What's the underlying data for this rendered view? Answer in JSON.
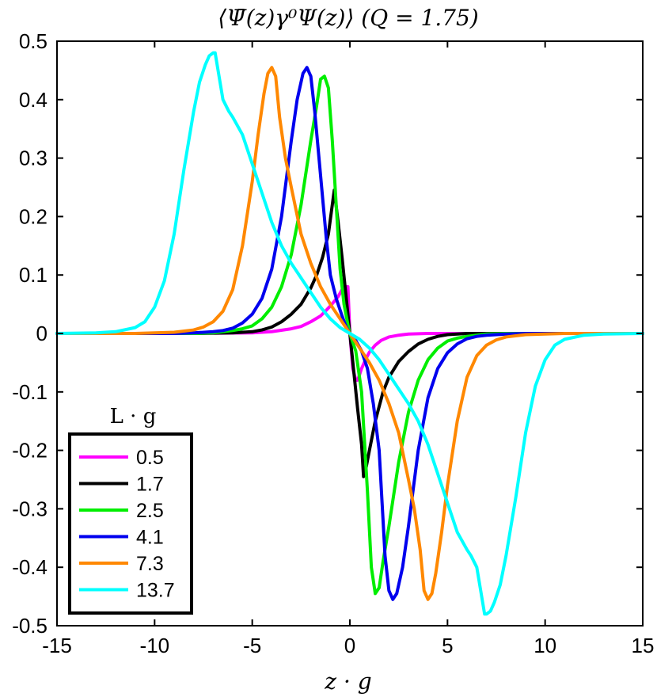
{
  "chart_data": {
    "type": "line",
    "title": "⟨Ψ̄(z)γ⁰Ψ(z)⟩ (Q = 1.75)",
    "xlabel": "z · g",
    "ylabel": "",
    "xlim": [
      -15,
      15
    ],
    "ylim": [
      -0.5,
      0.5
    ],
    "x_ticks": [
      -15,
      -10,
      -5,
      0,
      5,
      10,
      15
    ],
    "x_tick_labels": [
      "-15",
      "-10",
      "-5",
      "0",
      "5",
      "10",
      "15"
    ],
    "y_ticks": [
      -0.5,
      -0.4,
      -0.3,
      -0.2,
      -0.1,
      0,
      0.1,
      0.2,
      0.3,
      0.4,
      0.5
    ],
    "y_tick_labels": [
      "-0.5",
      "-0.4",
      "-0.3",
      "-0.2",
      "-0.1",
      "0",
      "0.1",
      "0.2",
      "0.3",
      "0.4",
      "0.5"
    ],
    "grid": false,
    "legend_title": "L · g",
    "legend_position": "bottom-left",
    "series": [
      {
        "name": "0.5",
        "color": "#ff00ff",
        "x": [
          -15,
          -8,
          -5,
          -4,
          -3,
          -2.5,
          -2,
          -1.5,
          -1.2,
          -1,
          -0.8,
          -0.6,
          -0.4,
          -0.3,
          -0.1,
          0,
          0.15,
          0.3,
          0.4,
          0.6,
          0.8,
          1.0,
          1.3,
          1.6,
          2,
          2.5,
          3,
          4,
          5,
          8,
          15
        ],
        "y": [
          0,
          0,
          0.001,
          0.003,
          0.008,
          0.012,
          0.02,
          0.03,
          0.04,
          0.047,
          0.055,
          0.063,
          0.075,
          0.08,
          0.08,
          0.0,
          -0.06,
          -0.08,
          -0.08,
          -0.06,
          -0.045,
          -0.032,
          -0.02,
          -0.012,
          -0.006,
          -0.003,
          -0.001,
          0,
          0,
          0,
          0
        ]
      },
      {
        "name": "1.7",
        "color": "#000000",
        "x": [
          -15,
          -8,
          -6,
          -5,
          -4.5,
          -4,
          -3.5,
          -3,
          -2.5,
          -2,
          -1.7,
          -1.4,
          -1.1,
          -0.9,
          -0.8,
          -0.6,
          -0.4,
          -0.2,
          0,
          0.2,
          0.4,
          0.6,
          0.7,
          0.8,
          1.0,
          1.3,
          1.7,
          2,
          2.5,
          3,
          3.5,
          4,
          4.5,
          5,
          6,
          8,
          15
        ],
        "y": [
          0,
          0,
          0.001,
          0.003,
          0.006,
          0.011,
          0.02,
          0.033,
          0.05,
          0.078,
          0.1,
          0.13,
          0.17,
          0.22,
          0.245,
          0.19,
          0.13,
          0.065,
          0,
          -0.065,
          -0.13,
          -0.19,
          -0.245,
          -0.235,
          -0.2,
          -0.15,
          -0.1,
          -0.075,
          -0.048,
          -0.031,
          -0.018,
          -0.01,
          -0.005,
          -0.002,
          0,
          0,
          0
        ]
      },
      {
        "name": "2.5",
        "color": "#00ee00",
        "x": [
          -15,
          -8,
          -7,
          -6,
          -5.5,
          -5,
          -4.5,
          -4,
          -3.5,
          -3,
          -2.5,
          -2,
          -1.7,
          -1.5,
          -1.3,
          -1.1,
          -0.9,
          -0.7,
          -0.5,
          -0.3,
          -0.1,
          0,
          0.3,
          0.6,
          0.9,
          1.1,
          1.3,
          1.5,
          1.7,
          2,
          2.5,
          3,
          3.5,
          4,
          4.5,
          5,
          5.5,
          6,
          7,
          8,
          15
        ],
        "y": [
          0,
          0,
          0.001,
          0.005,
          0.008,
          0.013,
          0.025,
          0.045,
          0.08,
          0.135,
          0.22,
          0.33,
          0.39,
          0.435,
          0.44,
          0.42,
          0.33,
          0.22,
          0.11,
          0.05,
          0.015,
          0,
          -0.03,
          -0.1,
          -0.27,
          -0.4,
          -0.445,
          -0.435,
          -0.39,
          -0.33,
          -0.22,
          -0.135,
          -0.08,
          -0.045,
          -0.025,
          -0.013,
          -0.008,
          -0.005,
          -0.001,
          0,
          0
        ]
      },
      {
        "name": "4.1",
        "color": "#0000ee",
        "x": [
          -15,
          -9,
          -8,
          -7,
          -6.5,
          -6,
          -5.5,
          -5,
          -4.5,
          -4,
          -3.5,
          -3,
          -2.7,
          -2.4,
          -2.2,
          -2,
          -1.8,
          -1.5,
          -1.2,
          -1,
          -0.7,
          -0.4,
          -0.2,
          0,
          0.3,
          0.6,
          0.9,
          1.2,
          1.5,
          1.8,
          2.0,
          2.2,
          2.4,
          2.7,
          3,
          3.5,
          4,
          4.5,
          5,
          5.5,
          6,
          6.5,
          7,
          8,
          9,
          15
        ],
        "y": [
          0,
          0,
          0.001,
          0.003,
          0.005,
          0.009,
          0.018,
          0.033,
          0.06,
          0.11,
          0.2,
          0.33,
          0.4,
          0.445,
          0.455,
          0.44,
          0.38,
          0.27,
          0.16,
          0.1,
          0.06,
          0.03,
          0.012,
          0,
          -0.012,
          -0.03,
          -0.06,
          -0.12,
          -0.2,
          -0.38,
          -0.44,
          -0.455,
          -0.445,
          -0.4,
          -0.33,
          -0.2,
          -0.11,
          -0.06,
          -0.033,
          -0.018,
          -0.009,
          -0.005,
          -0.003,
          -0.001,
          0,
          0
        ]
      },
      {
        "name": "7.3",
        "color": "#ff8800",
        "x": [
          -15,
          -11,
          -10,
          -9,
          -8,
          -7.5,
          -7,
          -6.5,
          -6,
          -5.5,
          -5,
          -4.7,
          -4.4,
          -4.2,
          -4.0,
          -3.8,
          -3.6,
          -3.3,
          -3.0,
          -2.5,
          -2,
          -1.5,
          -1,
          -0.5,
          0,
          0.5,
          1,
          1.5,
          2,
          2.5,
          3.0,
          3.3,
          3.6,
          3.8,
          4.0,
          4.2,
          4.4,
          4.7,
          5,
          5.5,
          6,
          6.5,
          7,
          7.5,
          8,
          9,
          10,
          11,
          15
        ],
        "y": [
          0,
          0,
          0.001,
          0.002,
          0.006,
          0.011,
          0.02,
          0.038,
          0.075,
          0.15,
          0.26,
          0.34,
          0.41,
          0.445,
          0.455,
          0.44,
          0.37,
          0.3,
          0.25,
          0.17,
          0.12,
          0.08,
          0.05,
          0.025,
          0,
          -0.025,
          -0.05,
          -0.08,
          -0.12,
          -0.17,
          -0.25,
          -0.3,
          -0.37,
          -0.44,
          -0.455,
          -0.445,
          -0.41,
          -0.34,
          -0.26,
          -0.15,
          -0.075,
          -0.038,
          -0.02,
          -0.011,
          -0.006,
          -0.002,
          -0.001,
          0,
          0
        ]
      },
      {
        "name": "13.7",
        "color": "#00ffff",
        "x": [
          -15,
          -13,
          -12,
          -11,
          -10.5,
          -10,
          -9.5,
          -9,
          -8.5,
          -8,
          -7.7,
          -7.4,
          -7.2,
          -7.0,
          -6.9,
          -6.7,
          -6.5,
          -6.2,
          -6,
          -5.5,
          -5,
          -4.5,
          -4,
          -3.5,
          -3,
          -2.5,
          -2,
          -1.5,
          -1,
          -0.5,
          0,
          0.5,
          1,
          1.5,
          2,
          2.5,
          3,
          3.5,
          4,
          4.5,
          5,
          5.5,
          6,
          6.2,
          6.5,
          6.7,
          6.9,
          7.0,
          7.2,
          7.4,
          7.7,
          8,
          8.5,
          9,
          9.5,
          10,
          10.5,
          11,
          12,
          13,
          15
        ],
        "y": [
          0,
          0.001,
          0.003,
          0.01,
          0.02,
          0.045,
          0.09,
          0.17,
          0.28,
          0.38,
          0.43,
          0.46,
          0.475,
          0.48,
          0.48,
          0.44,
          0.4,
          0.38,
          0.37,
          0.34,
          0.29,
          0.24,
          0.19,
          0.15,
          0.12,
          0.095,
          0.07,
          0.045,
          0.025,
          0.01,
          0,
          -0.01,
          -0.025,
          -0.045,
          -0.07,
          -0.095,
          -0.12,
          -0.15,
          -0.19,
          -0.24,
          -0.29,
          -0.34,
          -0.37,
          -0.38,
          -0.4,
          -0.44,
          -0.48,
          -0.48,
          -0.475,
          -0.46,
          -0.43,
          -0.38,
          -0.28,
          -0.17,
          -0.09,
          -0.045,
          -0.02,
          -0.01,
          -0.003,
          -0.001,
          0
        ]
      }
    ]
  }
}
